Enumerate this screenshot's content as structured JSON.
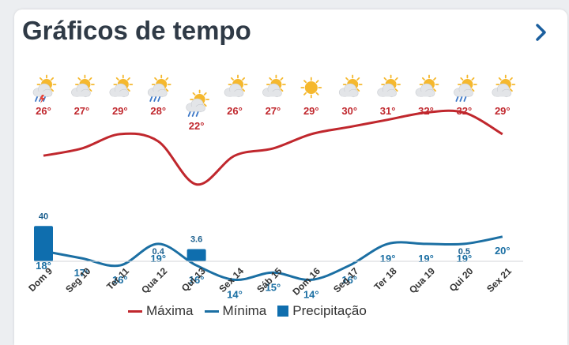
{
  "header": {
    "title": "Gráficos de tempo"
  },
  "legend": {
    "max_label": "Máxima",
    "min_label": "Mínima",
    "precip_label": "Precipitação"
  },
  "colors": {
    "max": "#c0272d",
    "min": "#1b6fa3",
    "precip": "#0f6eae",
    "sun": "#f5b82e",
    "cloud": "#e3e5e8",
    "rain": "#3d78c7"
  },
  "chart_data": {
    "type": "line",
    "categories": [
      "Dom 9",
      "Seg 10",
      "Ter 11",
      "Qua 12",
      "Qui 13",
      "Sex 14",
      "Sáb 15",
      "Dom 16",
      "Seg 17",
      "Ter 18",
      "Qua 19",
      "Qui 20",
      "Sex 21"
    ],
    "icons": [
      "storm-icon",
      "partly-cloudy-icon",
      "partly-cloudy-icon",
      "rain-icon",
      "rain-icon",
      "partly-cloudy-icon",
      "partly-cloudy-icon",
      "sun-icon",
      "partly-cloudy-icon",
      "partly-cloudy-icon",
      "partly-cloudy-icon",
      "rain-icon",
      "partly-cloudy-icon"
    ],
    "series": [
      {
        "name": "Máxima",
        "values": [
          26,
          27,
          29,
          28,
          22,
          26,
          27,
          29,
          30,
          31,
          32,
          32,
          29
        ]
      },
      {
        "name": "Mínima",
        "values": [
          18,
          17,
          16,
          19,
          16,
          14,
          15,
          14,
          16,
          19,
          19,
          19,
          20
        ]
      }
    ],
    "precipitation": {
      "name": "Precipitação",
      "values": [
        40,
        null,
        null,
        0.4,
        3.6,
        null,
        null,
        null,
        null,
        null,
        null,
        0.5,
        null
      ],
      "labels": [
        "40",
        "",
        "",
        "0.4",
        "3.6",
        "",
        "",
        "",
        "",
        "",
        "",
        "0.5",
        ""
      ]
    },
    "max_labels": [
      "26°",
      "27°",
      "29°",
      "28°",
      "22°",
      "26°",
      "27°",
      "29°",
      "30°",
      "31°",
      "32°",
      "32°",
      "29°"
    ],
    "min_labels": [
      "18°",
      "17°",
      "16°",
      "19°",
      "16°",
      "14°",
      "15°",
      "14°",
      "16°",
      "19°",
      "19°",
      "19°",
      "20°"
    ],
    "legend_position": "bottom",
    "grid": false
  }
}
